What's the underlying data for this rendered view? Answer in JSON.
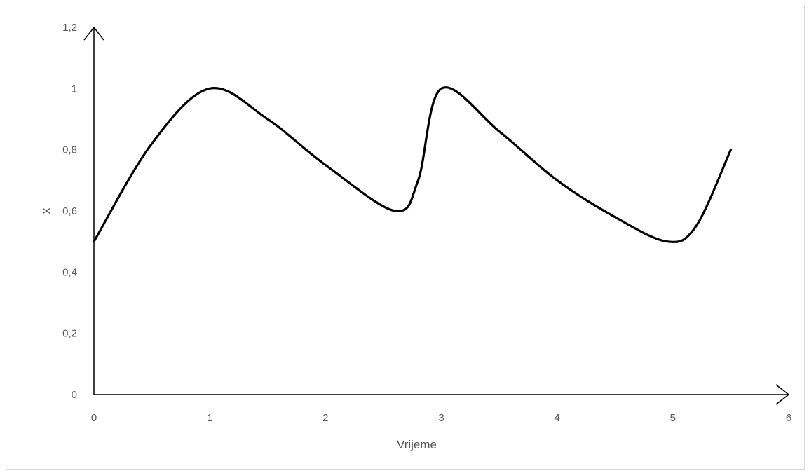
{
  "chart_data": {
    "type": "line",
    "title": "",
    "xlabel": "Vrijeme",
    "ylabel": "x",
    "xlim": [
      0,
      6
    ],
    "ylim": [
      0,
      1.2
    ],
    "x_ticks": [
      "0",
      "1",
      "2",
      "3",
      "4",
      "5",
      "6"
    ],
    "y_ticks": [
      "0",
      "0,2",
      "0,4",
      "0,6",
      "0,8",
      "1",
      "1,2"
    ],
    "grid": false,
    "legend": "none",
    "series": [
      {
        "color": "#000000",
        "x": [
          0,
          0.5,
          1,
          1.5,
          2,
          2.6,
          2.8,
          3,
          3.5,
          4,
          4.5,
          4.95,
          5.2,
          5.5
        ],
        "y": [
          0.5,
          0.82,
          1.0,
          0.9,
          0.75,
          0.6,
          0.7,
          1.0,
          0.86,
          0.7,
          0.58,
          0.5,
          0.55,
          0.8
        ]
      }
    ]
  }
}
